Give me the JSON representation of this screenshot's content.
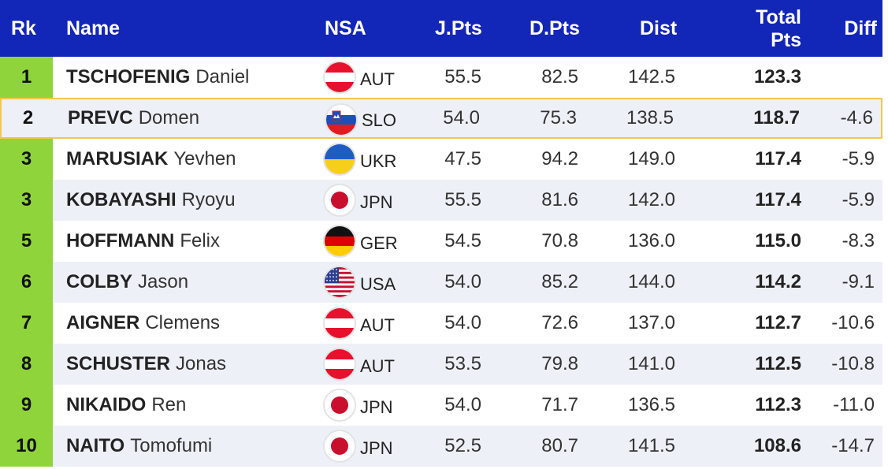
{
  "header": {
    "rk": "Rk",
    "name": "Name",
    "nsa": "NSA",
    "jpts": "J.Pts",
    "dpts": "D.Pts",
    "dist": "Dist",
    "total_line1": "Total",
    "total_line2": "Pts",
    "diff": "Diff"
  },
  "rows": [
    {
      "rk": "1",
      "last": "TSCHOFENIG",
      "first": "Daniel",
      "nsa": "AUT",
      "flag": "austria-flag-icon",
      "jpts": "55.5",
      "dpts": "82.5",
      "dist": "142.5",
      "total": "123.3",
      "diff": ""
    },
    {
      "rk": "2",
      "last": "PREVC",
      "first": "Domen",
      "nsa": "SLO",
      "flag": "slovenia-flag-icon",
      "jpts": "54.0",
      "dpts": "75.3",
      "dist": "138.5",
      "total": "118.7",
      "diff": "-4.6"
    },
    {
      "rk": "3",
      "last": "MARUSIAK",
      "first": "Yevhen",
      "nsa": "UKR",
      "flag": "ukraine-flag-icon",
      "jpts": "47.5",
      "dpts": "94.2",
      "dist": "149.0",
      "total": "117.4",
      "diff": "-5.9"
    },
    {
      "rk": "3",
      "last": "KOBAYASHI",
      "first": "Ryoyu",
      "nsa": "JPN",
      "flag": "japan-flag-icon",
      "jpts": "55.5",
      "dpts": "81.6",
      "dist": "142.0",
      "total": "117.4",
      "diff": "-5.9"
    },
    {
      "rk": "5",
      "last": "HOFFMANN",
      "first": "Felix",
      "nsa": "GER",
      "flag": "germany-flag-icon",
      "jpts": "54.5",
      "dpts": "70.8",
      "dist": "136.0",
      "total": "115.0",
      "diff": "-8.3"
    },
    {
      "rk": "6",
      "last": "COLBY",
      "first": "Jason",
      "nsa": "USA",
      "flag": "usa-flag-icon",
      "jpts": "54.0",
      "dpts": "85.2",
      "dist": "144.0",
      "total": "114.2",
      "diff": "-9.1"
    },
    {
      "rk": "7",
      "last": "AIGNER",
      "first": "Clemens",
      "nsa": "AUT",
      "flag": "austria-flag-icon",
      "jpts": "54.0",
      "dpts": "72.6",
      "dist": "137.0",
      "total": "112.7",
      "diff": "-10.6"
    },
    {
      "rk": "8",
      "last": "SCHUSTER",
      "first": "Jonas",
      "nsa": "AUT",
      "flag": "austria-flag-icon",
      "jpts": "53.5",
      "dpts": "79.8",
      "dist": "141.0",
      "total": "112.5",
      "diff": "-10.8"
    },
    {
      "rk": "9",
      "last": "NIKAIDO",
      "first": "Ren",
      "nsa": "JPN",
      "flag": "japan-flag-icon",
      "jpts": "54.0",
      "dpts": "71.7",
      "dist": "136.5",
      "total": "112.3",
      "diff": "-11.0"
    },
    {
      "rk": "10",
      "last": "NAITO",
      "first": "Tomofumi",
      "nsa": "JPN",
      "flag": "japan-flag-icon",
      "jpts": "52.5",
      "dpts": "80.7",
      "dist": "141.5",
      "total": "108.6",
      "diff": "-14.7"
    }
  ],
  "colors": {
    "header_bg": "#1226b8",
    "rank_bg": "#8fd43a",
    "row_alt_bg": "#eef0f7",
    "selected_border": "#f3c74b"
  }
}
